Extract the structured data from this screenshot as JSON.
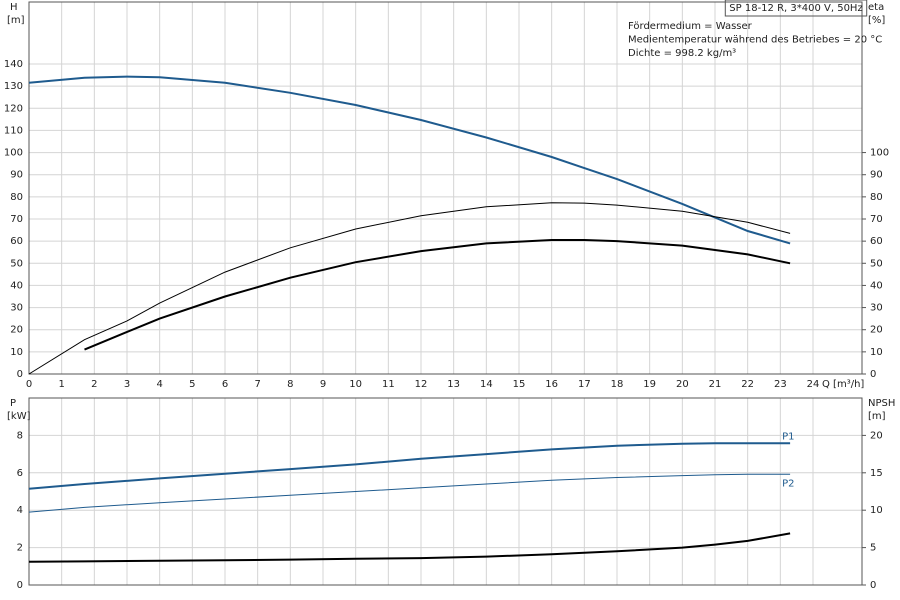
{
  "chart_data": [
    {
      "type": "line",
      "title": "SP 18-12 R, 3*400 V, 50Hz",
      "annotations": [
        "Fördermedium = Wasser",
        "Medientemperatur während des Betriebes = 20 °C",
        "Dichte = 998.2 kg/m³"
      ],
      "ylabel": "H",
      "yunit": "[m]",
      "y2label": "eta",
      "y2unit": "[%]",
      "xlabel": "Q [m³/h]",
      "xlim": [
        0,
        25.5
      ],
      "xticks": [
        0,
        1,
        2,
        3,
        4,
        5,
        6,
        7,
        8,
        9,
        10,
        11,
        12,
        13,
        14,
        15,
        16,
        17,
        18,
        19,
        20,
        21,
        22,
        23,
        24
      ],
      "ylim": [
        0,
        168
      ],
      "yticks": [
        0,
        10,
        20,
        30,
        40,
        50,
        60,
        70,
        80,
        90,
        100,
        110,
        120,
        130,
        140
      ],
      "y2lim": [
        0,
        168
      ],
      "y2ticks": [
        0,
        10,
        20,
        30,
        40,
        50,
        60,
        70,
        80,
        90,
        100
      ],
      "grid": true,
      "x": [
        0,
        1.7,
        3,
        4,
        6,
        8,
        10,
        12,
        14,
        16,
        17,
        18,
        20,
        22,
        23.3
      ],
      "series": [
        {
          "color": "#1f5b8e",
          "linewidth": 2,
          "values": [
            131.5,
            133.8,
            134.3,
            134,
            131.5,
            127,
            121.5,
            114.7,
            106.8,
            98,
            93,
            88,
            76.8,
            64.6,
            59
          ]
        },
        {
          "color": "#000000",
          "linewidth": 1,
          "axis": "y2",
          "values": [
            0,
            15.5,
            24,
            32,
            46,
            57,
            65.5,
            71.5,
            75.5,
            77.3,
            77.2,
            76.3,
            73.5,
            68.5,
            63.5
          ]
        },
        {
          "color": "#000000",
          "linewidth": 2,
          "axis": "y2",
          "values": [
            null,
            11,
            19,
            25,
            35,
            43.5,
            50.5,
            55.5,
            59,
            60.5,
            60.5,
            60,
            58,
            54,
            50
          ]
        }
      ]
    },
    {
      "type": "line",
      "ylabel": "P",
      "yunit": "[kW]",
      "y2label": "NPSH",
      "y2unit": "[m]",
      "xlim": [
        0,
        25.5
      ],
      "xticks": [
        0,
        1,
        2,
        3,
        4,
        5,
        6,
        7,
        8,
        9,
        10,
        11,
        12,
        13,
        14,
        15,
        16,
        17,
        18,
        19,
        20,
        21,
        22,
        23,
        24
      ],
      "ylim": [
        0,
        10
      ],
      "yticks": [
        0,
        2,
        4,
        6,
        8
      ],
      "y2lim": [
        0,
        25
      ],
      "y2ticks": [
        0,
        5,
        10,
        15,
        20
      ],
      "grid": true,
      "x": [
        0,
        1.7,
        4,
        6,
        8,
        10,
        12,
        14,
        16,
        18,
        20,
        21,
        22,
        23.3
      ],
      "series": [
        {
          "name": "P1",
          "color": "#1f5b8e",
          "linewidth": 2,
          "values": [
            5.15,
            5.4,
            5.7,
            5.95,
            6.2,
            6.45,
            6.75,
            7.0,
            7.25,
            7.45,
            7.55,
            7.58,
            7.58,
            7.58
          ]
        },
        {
          "name": "P2",
          "color": "#1f5b8e",
          "linewidth": 1,
          "values": [
            3.9,
            4.15,
            4.4,
            4.6,
            4.8,
            5.0,
            5.2,
            5.4,
            5.6,
            5.75,
            5.85,
            5.9,
            5.92,
            5.92
          ]
        },
        {
          "color": "#000000",
          "linewidth": 2,
          "axis": "y2",
          "values": [
            3.1,
            3.15,
            3.25,
            3.3,
            3.4,
            3.5,
            3.6,
            3.8,
            4.1,
            4.5,
            5.0,
            5.4,
            5.9,
            6.9
          ]
        }
      ]
    }
  ]
}
